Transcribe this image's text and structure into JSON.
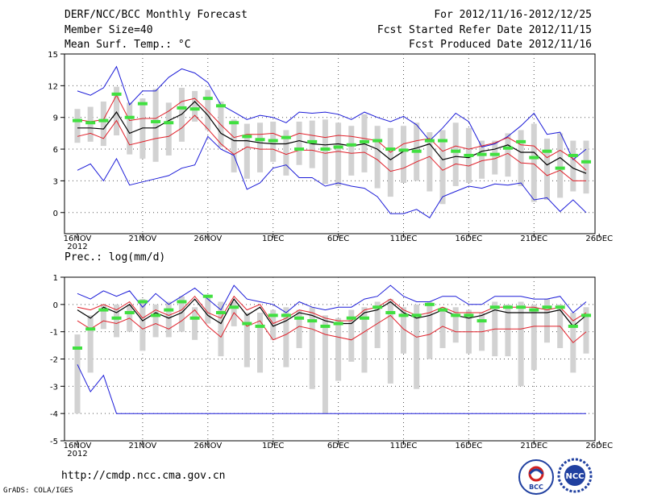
{
  "header": {
    "line1_left": "DERF/NCC/BCC Monthly Forecast",
    "line2_left": "Member Size=40",
    "line3_left": "Mean Surf. Temp.: °C",
    "line1_right": "For 2012/11/16-2012/12/25",
    "line2_right": "Fcst Started Refer Date 2012/11/15",
    "line3_right": "Fcst Produced Date 2012/11/16"
  },
  "footer": {
    "url": "http://cmdp.ncc.cma.gov.cn",
    "credit": "GrADS: COLA/IGES",
    "logo_left_text": "BCC",
    "logo_right_text": "NCC"
  },
  "colors": {
    "box": "#d2d2d2",
    "median": "#40e040",
    "mean": "#000000",
    "std": "#e0202a",
    "extreme": "#1c1cd8"
  },
  "chart_data": [
    {
      "type": "line",
      "title": "Mean Surf. Temp.: °C",
      "x_ticks": [
        "16NOV",
        "21NOV",
        "26NOV",
        "1DEC",
        "6DEC",
        "11DEC",
        "16DEC",
        "21DEC",
        "26DEC"
      ],
      "x_sub": "2012",
      "ylim": [
        -2,
        15
      ],
      "y_ticks": [
        0,
        3,
        6,
        9,
        12,
        15
      ],
      "series": [
        {
          "name": "max",
          "values": [
            11.5,
            11.1,
            11.8,
            13.8,
            10.2,
            11.5,
            11.5,
            12.8,
            13.6,
            13.2,
            12.3,
            10.2,
            9.5,
            8.8,
            9.2,
            9.0,
            8.5,
            9.5,
            9.4,
            9.5,
            9.3,
            8.8,
            9.5,
            9.0,
            8.6,
            9.1,
            8.3,
            6.8,
            8.0,
            9.4,
            8.6,
            6.2,
            6.5,
            7.2,
            8.2,
            9.4,
            7.4,
            7.6,
            5.0,
            6.0
          ]
        },
        {
          "name": "plus_std",
          "values": [
            8.8,
            8.6,
            8.8,
            11.1,
            8.7,
            8.9,
            8.9,
            9.6,
            10.5,
            10.8,
            9.6,
            8.3,
            7.1,
            7.4,
            7.4,
            7.5,
            7.0,
            7.5,
            7.3,
            7.1,
            7.3,
            7.2,
            7.0,
            6.8,
            5.7,
            6.5,
            6.8,
            7.0,
            5.8,
            6.3,
            6.0,
            6.3,
            6.6,
            7.1,
            6.4,
            6.3,
            5.2,
            5.9,
            5.1,
            4.0
          ]
        },
        {
          "name": "mean",
          "values": [
            8.0,
            8.0,
            7.9,
            9.5,
            7.5,
            8.0,
            8.0,
            8.7,
            9.3,
            10.5,
            9.2,
            7.5,
            6.8,
            6.8,
            6.6,
            6.5,
            6.5,
            6.8,
            6.5,
            6.4,
            6.5,
            6.3,
            6.5,
            6.0,
            5.0,
            5.8,
            6.1,
            6.5,
            5.0,
            5.3,
            5.2,
            5.8,
            6.0,
            6.4,
            5.7,
            5.7,
            4.5,
            5.2,
            4.2,
            3.7
          ]
        },
        {
          "name": "minus_std",
          "values": [
            7.2,
            7.5,
            7.0,
            8.7,
            6.4,
            6.7,
            7.0,
            7.2,
            8.0,
            9.2,
            7.9,
            6.5,
            5.5,
            6.2,
            6.0,
            6.0,
            5.5,
            5.9,
            5.9,
            5.6,
            5.8,
            5.6,
            5.7,
            5.0,
            3.9,
            4.2,
            4.8,
            5.3,
            4.0,
            4.6,
            4.4,
            4.9,
            5.1,
            5.6,
            4.7,
            4.6,
            3.5,
            4.0,
            3.0,
            3.0
          ]
        },
        {
          "name": "min",
          "values": [
            4.0,
            4.6,
            3.0,
            5.1,
            2.6,
            2.9,
            3.2,
            3.5,
            4.2,
            4.5,
            7.2,
            6.0,
            5.4,
            2.2,
            2.8,
            4.2,
            4.5,
            3.3,
            3.3,
            2.5,
            2.8,
            2.5,
            2.3,
            1.5,
            -0.1,
            -0.1,
            0.3,
            -0.5,
            1.5,
            2.0,
            2.5,
            2.3,
            2.7,
            2.6,
            2.8,
            1.2,
            1.4,
            0.1,
            1.2,
            0.0
          ]
        },
        {
          "name": "median",
          "values": [
            8.7,
            8.5,
            8.7,
            11.2,
            9.0,
            10.3,
            8.6,
            8.5,
            9.9,
            9.8,
            10.8,
            10.1,
            8.5,
            7.2,
            6.9,
            6.8,
            7.1,
            6.0,
            6.7,
            6.0,
            6.2,
            6.4,
            6.7,
            6.8,
            6.0,
            5.9,
            5.8,
            6.8,
            6.8,
            5.8,
            5.4,
            5.5,
            5.5,
            6.1,
            6.7,
            5.2,
            5.8,
            4.2,
            5.4,
            4.8
          ]
        },
        {
          "name": "box_high",
          "values": [
            9.8,
            10.0,
            10.5,
            11.9,
            10.4,
            10.8,
            11.7,
            10.4,
            11.8,
            11.5,
            11.6,
            10.5,
            8.8,
            8.4,
            8.5,
            8.6,
            7.8,
            8.6,
            8.7,
            8.8,
            8.5,
            8.2,
            9.3,
            8.2,
            8.0,
            8.2,
            8.5,
            7.6,
            7.8,
            8.5,
            8.0,
            6.8,
            6.8,
            7.5,
            7.8,
            8.4,
            7.0,
            7.5,
            6.8,
            6.8
          ]
        },
        {
          "name": "box_low",
          "values": [
            6.6,
            6.7,
            6.3,
            7.3,
            5.5,
            5.1,
            4.8,
            5.4,
            6.7,
            8.6,
            7.8,
            6.2,
            3.8,
            3.2,
            3.8,
            4.8,
            3.5,
            4.5,
            4.2,
            2.7,
            2.5,
            3.5,
            3.8,
            2.3,
            1.5,
            2.8,
            3.0,
            2.0,
            0.8,
            2.5,
            2.8,
            3.2,
            3.6,
            3.4,
            2.5,
            1.0,
            1.2,
            1.4,
            2.0,
            1.8
          ]
        }
      ]
    },
    {
      "type": "line",
      "title": "Prec.: log(mm/d)",
      "x_ticks": [
        "16NOV",
        "21NOV",
        "26NOV",
        "1DEC",
        "6DEC",
        "11DEC",
        "16DEC",
        "21DEC",
        "26DEC"
      ],
      "x_sub": "2012",
      "ylim": [
        -5,
        1
      ],
      "y_ticks": [
        -5,
        -4,
        -3,
        -2,
        -1,
        0,
        1
      ],
      "series": [
        {
          "name": "max",
          "values": [
            0.4,
            0.2,
            0.5,
            0.3,
            0.5,
            -0.1,
            0.4,
            0.0,
            0.3,
            0.6,
            0.2,
            -0.2,
            0.7,
            0.2,
            0.1,
            0.0,
            -0.3,
            0.1,
            -0.1,
            -0.2,
            -0.1,
            -0.1,
            0.2,
            0.3,
            0.7,
            0.3,
            0.1,
            0.1,
            0.3,
            0.3,
            0.0,
            0.0,
            0.3,
            0.3,
            0.3,
            0.2,
            0.2,
            0.3,
            -0.3,
            0.1
          ]
        },
        {
          "name": "plus_std",
          "values": [
            -0.1,
            -0.2,
            0.0,
            -0.2,
            0.1,
            -0.5,
            -0.2,
            -0.4,
            -0.2,
            0.3,
            -0.3,
            -0.5,
            0.3,
            -0.2,
            0.0,
            -0.7,
            -0.5,
            -0.2,
            -0.3,
            -0.5,
            -0.6,
            -0.6,
            -0.2,
            -0.1,
            0.2,
            -0.2,
            -0.4,
            -0.3,
            -0.1,
            -0.3,
            -0.3,
            -0.3,
            -0.1,
            -0.1,
            -0.1,
            -0.1,
            -0.2,
            -0.1,
            -0.6,
            -0.3
          ]
        },
        {
          "name": "mean",
          "values": [
            -0.2,
            -0.5,
            -0.1,
            -0.3,
            0.0,
            -0.6,
            -0.3,
            -0.5,
            -0.3,
            0.2,
            -0.4,
            -0.7,
            0.2,
            -0.4,
            -0.1,
            -0.8,
            -0.6,
            -0.3,
            -0.4,
            -0.6,
            -0.7,
            -0.7,
            -0.3,
            -0.2,
            0.1,
            -0.3,
            -0.5,
            -0.4,
            -0.2,
            -0.4,
            -0.5,
            -0.4,
            -0.2,
            -0.3,
            -0.3,
            -0.3,
            -0.3,
            -0.2,
            -0.8,
            -0.4
          ]
        },
        {
          "name": "minus_std",
          "values": [
            -0.6,
            -0.9,
            -0.6,
            -0.7,
            -0.5,
            -0.9,
            -0.7,
            -0.9,
            -0.6,
            -0.2,
            -0.8,
            -1.2,
            -0.3,
            -0.8,
            -0.6,
            -1.3,
            -1.1,
            -0.8,
            -0.9,
            -1.1,
            -1.2,
            -1.3,
            -1.0,
            -0.7,
            -0.4,
            -0.9,
            -1.2,
            -1.1,
            -0.8,
            -1.0,
            -1.0,
            -1.0,
            -0.9,
            -0.9,
            -0.9,
            -0.8,
            -0.8,
            -0.8,
            -1.4,
            -1.0
          ]
        },
        {
          "name": "min",
          "values": [
            -2.2,
            -3.2,
            -2.6,
            -4.0,
            -4.0,
            -4.0,
            -4.0,
            -4.0,
            -4.0,
            -4.0,
            -4.0,
            -4.0,
            -4.0,
            -4.0,
            -4.0,
            -4.0,
            -4.0,
            -4.0,
            -4.0,
            -4.0,
            -4.0,
            -4.0,
            -4.0,
            -4.0,
            -4.0,
            -4.0,
            -4.0,
            -4.0,
            -4.0,
            -4.0,
            -4.0,
            -4.0,
            -4.0,
            -4.0,
            -4.0,
            -4.0,
            -4.0,
            -4.0,
            -4.0,
            -4.0
          ]
        },
        {
          "name": "median",
          "values": [
            -1.6,
            -0.9,
            -0.2,
            -0.5,
            -0.3,
            0.1,
            -0.4,
            -0.2,
            0.1,
            -0.5,
            0.3,
            -0.3,
            -0.1,
            -0.7,
            -0.8,
            -0.4,
            -0.4,
            -0.5,
            -0.6,
            -0.8,
            -0.7,
            -0.5,
            -0.5,
            -0.1,
            -0.3,
            -0.4,
            -0.4,
            0.0,
            -0.2,
            -0.4,
            -0.4,
            -0.6,
            -0.1,
            -0.1,
            -0.1,
            -0.2,
            -0.1,
            -0.1,
            -0.8,
            -0.4
          ]
        },
        {
          "name": "box_high",
          "values": [
            -1.1,
            -0.4,
            0.0,
            0.0,
            0.0,
            0.2,
            0.0,
            0.1,
            0.3,
            -0.1,
            0.3,
            0.1,
            0.1,
            -0.3,
            -0.3,
            -0.2,
            -0.1,
            -0.2,
            -0.1,
            -0.4,
            -0.5,
            -0.2,
            -0.1,
            0.1,
            0.2,
            -0.1,
            0.0,
            0.1,
            -0.1,
            -0.1,
            -0.2,
            -0.3,
            0.1,
            0.0,
            0.1,
            0.0,
            0.2,
            0.0,
            -0.3,
            -0.1
          ]
        },
        {
          "name": "box_low",
          "values": [
            -4.0,
            -2.5,
            -0.9,
            -1.2,
            -1.0,
            -1.7,
            -1.2,
            -1.2,
            -1.0,
            -1.3,
            -0.7,
            -1.9,
            -0.8,
            -2.3,
            -2.5,
            -1.3,
            -2.3,
            -1.6,
            -3.1,
            -4.0,
            -2.8,
            -2.1,
            -2.5,
            -1.6,
            -2.9,
            -1.8,
            -3.1,
            -2.0,
            -1.6,
            -1.4,
            -1.8,
            -1.7,
            -1.9,
            -1.9,
            -3.0,
            -2.4,
            -1.4,
            -1.6,
            -2.5,
            -1.8
          ]
        }
      ]
    }
  ]
}
